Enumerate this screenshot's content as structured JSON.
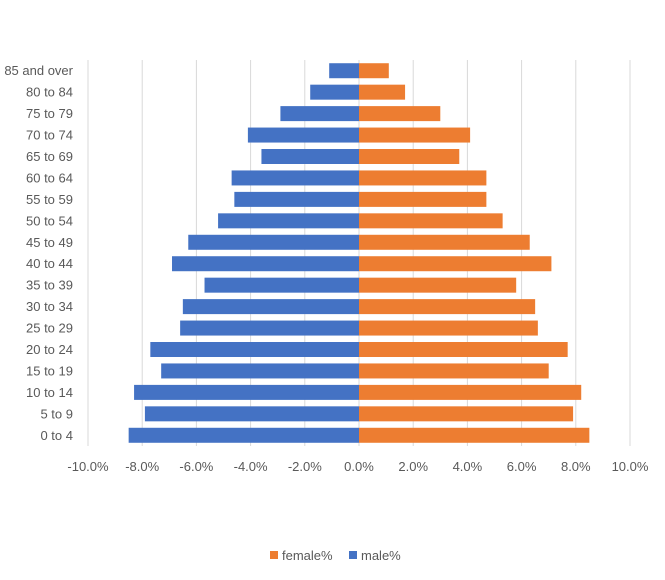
{
  "chart_data": {
    "type": "bar",
    "orientation": "horizontal",
    "title": "",
    "xlabel": "",
    "ylabel": "",
    "xlim": [
      -0.1,
      0.1
    ],
    "grid": true,
    "legend_position": "bottom",
    "categories": [
      "0 to 4",
      "5 to 9",
      "10 to 14",
      "15 to 19",
      "20 to 24",
      "25 to 29",
      "30 to 34",
      "35 to 39",
      "40 to 44",
      "45 to 49",
      "50 to 54",
      "55 to 59",
      "60 to 64",
      "65 to 69",
      "70 to 74",
      "75 to 79",
      "80 to 84",
      "85 and over"
    ],
    "x_tick_values": [
      -0.1,
      -0.08,
      -0.06,
      -0.04,
      -0.02,
      0.0,
      0.02,
      0.04,
      0.06,
      0.08,
      0.1
    ],
    "x_tick_labels": [
      "-10.0%",
      "-8.0%",
      "-6.0%",
      "-4.0%",
      "-2.0%",
      "0.0%",
      "2.0%",
      "4.0%",
      "6.0%",
      "8.0%",
      "10.0%"
    ],
    "series": [
      {
        "name": "female%",
        "color": "#ED7D31",
        "values": [
          0.085,
          0.079,
          0.082,
          0.07,
          0.077,
          0.066,
          0.065,
          0.058,
          0.071,
          0.063,
          0.053,
          0.047,
          0.047,
          0.037,
          0.041,
          0.03,
          0.017,
          0.011
        ]
      },
      {
        "name": "male%",
        "color": "#4472C4",
        "values": [
          -0.085,
          -0.079,
          -0.083,
          -0.073,
          -0.077,
          -0.066,
          -0.065,
          -0.057,
          -0.069,
          -0.063,
          -0.052,
          -0.046,
          -0.047,
          -0.036,
          -0.041,
          -0.029,
          -0.018,
          -0.011
        ]
      }
    ]
  }
}
